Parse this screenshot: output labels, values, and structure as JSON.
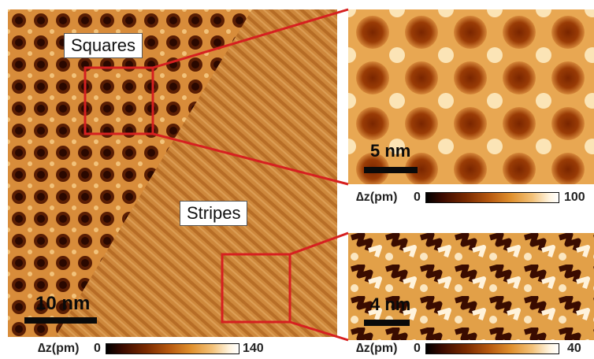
{
  "labels": {
    "squares": "Squares",
    "stripes": "Stripes"
  },
  "scalebars": {
    "main": "10 nm",
    "zoom_top": "5 nm",
    "zoom_bottom": "4 nm"
  },
  "colorbars": {
    "main": {
      "label": "∆z(pm)",
      "min": "0",
      "max": "140"
    },
    "zoom_top": {
      "label": "∆z(pm)",
      "min": "0",
      "max": "100"
    },
    "zoom_bottom": {
      "label": "∆z(pm)",
      "min": "0",
      "max": "40"
    }
  },
  "colors": {
    "highlight_box": "#d62020",
    "surface_mid": "#c87a2c",
    "surface_dark": "#3a1000",
    "surface_light": "#fff0d2"
  }
}
